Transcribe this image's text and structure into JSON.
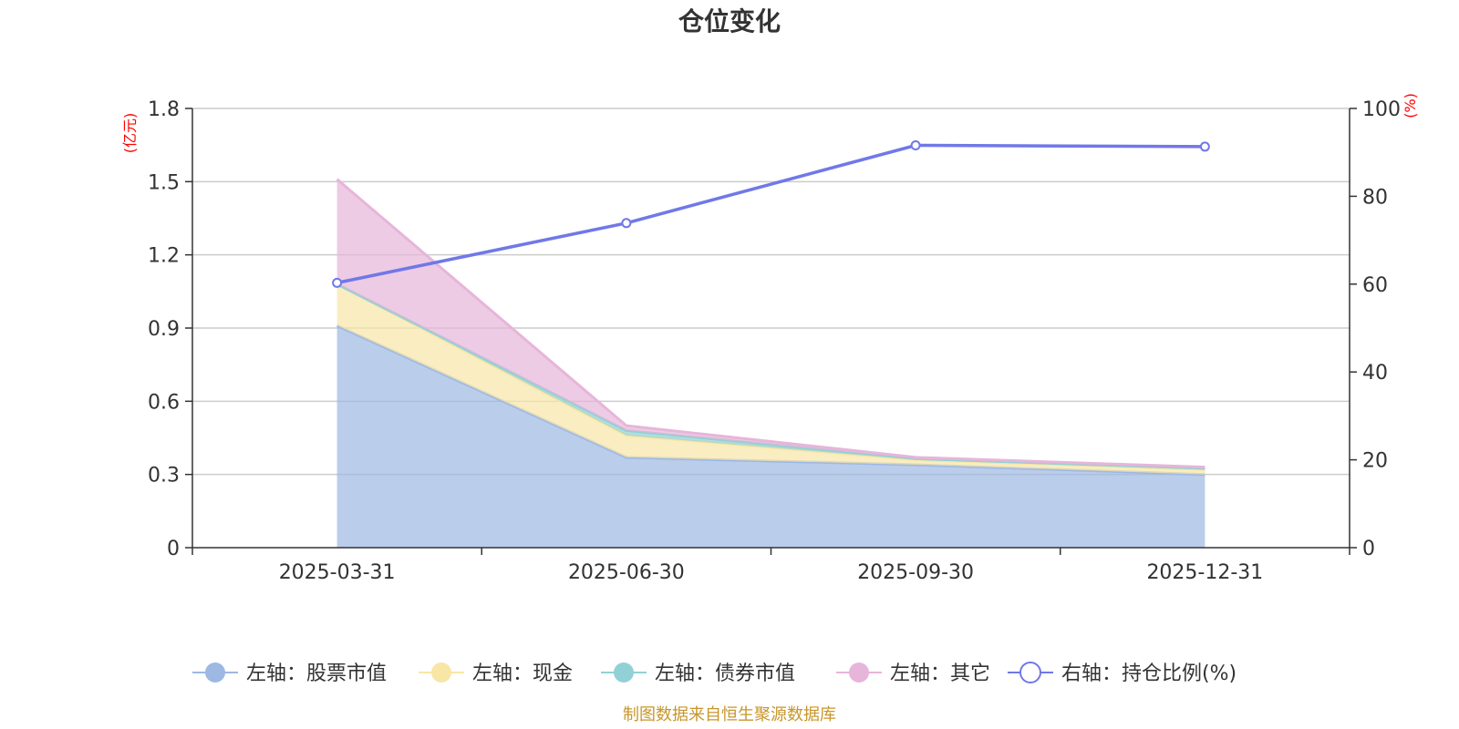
{
  "chart_data": {
    "type": "area",
    "title": "仓位变化",
    "categories": [
      "2025-03-31",
      "2025-06-30",
      "2025-09-30",
      "2025-12-31"
    ],
    "left_axis": {
      "unit": "(亿元)",
      "ylim": [
        0,
        1.8
      ],
      "ticks": [
        "0",
        "0.3",
        "0.6",
        "0.9",
        "1.2",
        "1.5",
        "1.8"
      ],
      "tick_values": [
        0,
        0.3,
        0.6,
        0.9,
        1.2,
        1.5,
        1.8
      ]
    },
    "right_axis": {
      "unit": "(%)",
      "ylim": [
        0,
        100
      ],
      "ticks": [
        "0",
        "20",
        "40",
        "60",
        "80",
        "100"
      ],
      "tick_values": [
        0,
        20,
        40,
        60,
        80,
        100
      ]
    },
    "stacked_series": [
      {
        "name": "左轴：股票市值",
        "color": "#9db8e3",
        "values": [
          0.91,
          0.37,
          0.34,
          0.3
        ]
      },
      {
        "name": "左轴：现金",
        "color": "#f8e6a6",
        "values": [
          0.17,
          0.09,
          0.02,
          0.02
        ]
      },
      {
        "name": "左轴：债券市值",
        "color": "#91d1d6",
        "values": [
          0.0,
          0.02,
          0.005,
          0.005
        ]
      },
      {
        "name": "左轴：其它",
        "color": "#e7b5d9",
        "values": [
          0.43,
          0.02,
          0.005,
          0.005
        ]
      }
    ],
    "line_series": {
      "name": "右轴：持仓比例(%)",
      "color": "#7078e8",
      "values": [
        60.3,
        73.9,
        91.6,
        91.3
      ]
    },
    "source": "制图数据来自恒生聚源数据库"
  }
}
